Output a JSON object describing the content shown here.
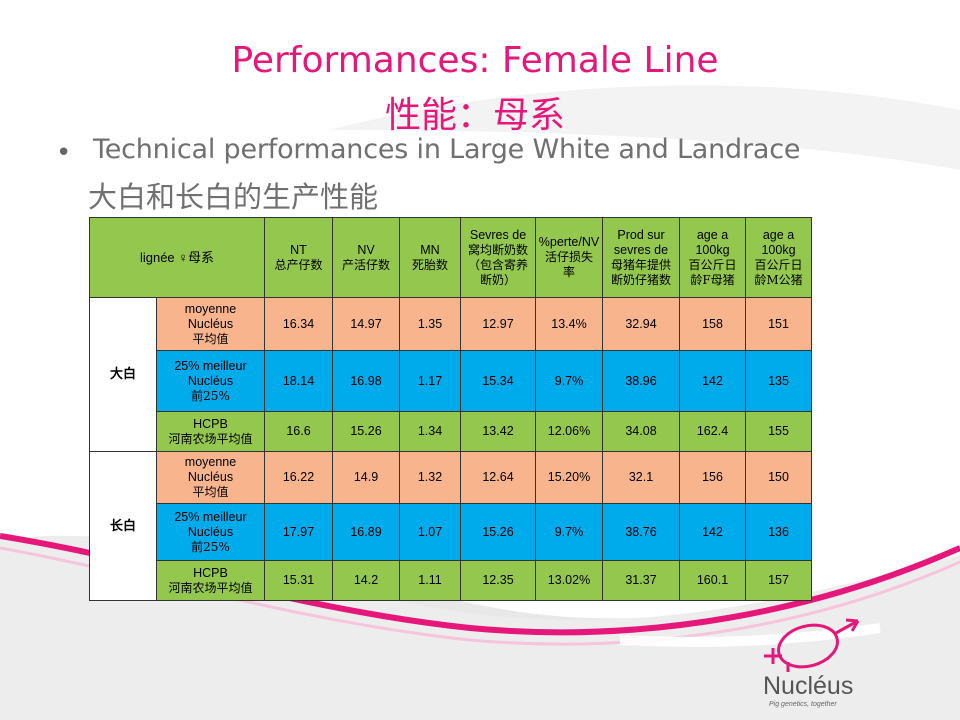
{
  "slide": {
    "title": "Performances: Female Line",
    "title_cn": "性能：母系",
    "bullet": "Technical performances in Large White and Landrace",
    "bullet_cn": "大白和长白的生产性能"
  },
  "table": {
    "header": {
      "lignee": "lignée ♀母系",
      "cols": [
        {
          "l1": "NT",
          "l2": "总产仔数"
        },
        {
          "l1": "NV",
          "l2": "产活仔数"
        },
        {
          "l1": "MN",
          "l2": "死胎数"
        },
        {
          "l1": "Sevres de",
          "l2": "窝均断奶数",
          "l3": "（包含寄养",
          "l4": "断奶）"
        },
        {
          "l1": "%perte/NV",
          "l2": "活仔损失",
          "l3": "率"
        },
        {
          "l1": "Prod sur",
          "l2": "sevres de",
          "l3": "母猪年提供",
          "l4": "断奶仔猪数"
        },
        {
          "l1": "age a",
          "l2": "100kg",
          "l3": "百公斤日",
          "l4": "龄F母猪"
        },
        {
          "l1": "age a",
          "l2": "100kg",
          "l3": "百公斤日",
          "l4": "龄M公猪"
        }
      ]
    },
    "groups": [
      {
        "breed": "大白",
        "rows": [
          {
            "l1": "moyenne",
            "l2": "Nucléus",
            "l3": "平均值",
            "values": [
              "16.34",
              "14.97",
              "1.35",
              "12.97",
              "13.4%",
              "32.94",
              "158",
              "151"
            ]
          },
          {
            "l1": "25% meilleur",
            "l2": "Nucléus",
            "l3": "前25%",
            "values": [
              "18.14",
              "16.98",
              "1.17",
              "15.34",
              "9.7%",
              "38.96",
              "142",
              "135"
            ]
          },
          {
            "l1": "HCPB",
            "l2": "河南农场平均值",
            "values": [
              "16.6",
              "15.26",
              "1.34",
              "13.42",
              "12.06%",
              "34.08",
              "162.4",
              "155"
            ]
          }
        ]
      },
      {
        "breed": "长白",
        "rows": [
          {
            "l1": "moyenne",
            "l2": "Nucléus",
            "l3": "平均值",
            "values": [
              "16.22",
              "14.9",
              "1.32",
              "12.64",
              "15.20%",
              "32.1",
              "156",
              "150"
            ]
          },
          {
            "l1": "25% meilleur",
            "l2": "Nucléus",
            "l3": "前25%",
            "values": [
              "17.97",
              "16.89",
              "1.07",
              "15.26",
              "9.7%",
              "38.76",
              "142",
              "136"
            ]
          },
          {
            "l1": "HCPB",
            "l2": "河南农场平均值",
            "values": [
              "15.31",
              "14.2",
              "1.11",
              "12.35",
              "13.02%",
              "31.37",
              "160.1",
              "157"
            ]
          }
        ]
      }
    ]
  },
  "logo": {
    "word": "Nucléus",
    "tagline": "Pig genetics, together"
  },
  "colors": {
    "accent": "#e6177a",
    "header_bg": "#93c74d",
    "average_row": "#f7b48d",
    "top25_row": "#00abec",
    "hcpb_row": "#93c74d"
  }
}
